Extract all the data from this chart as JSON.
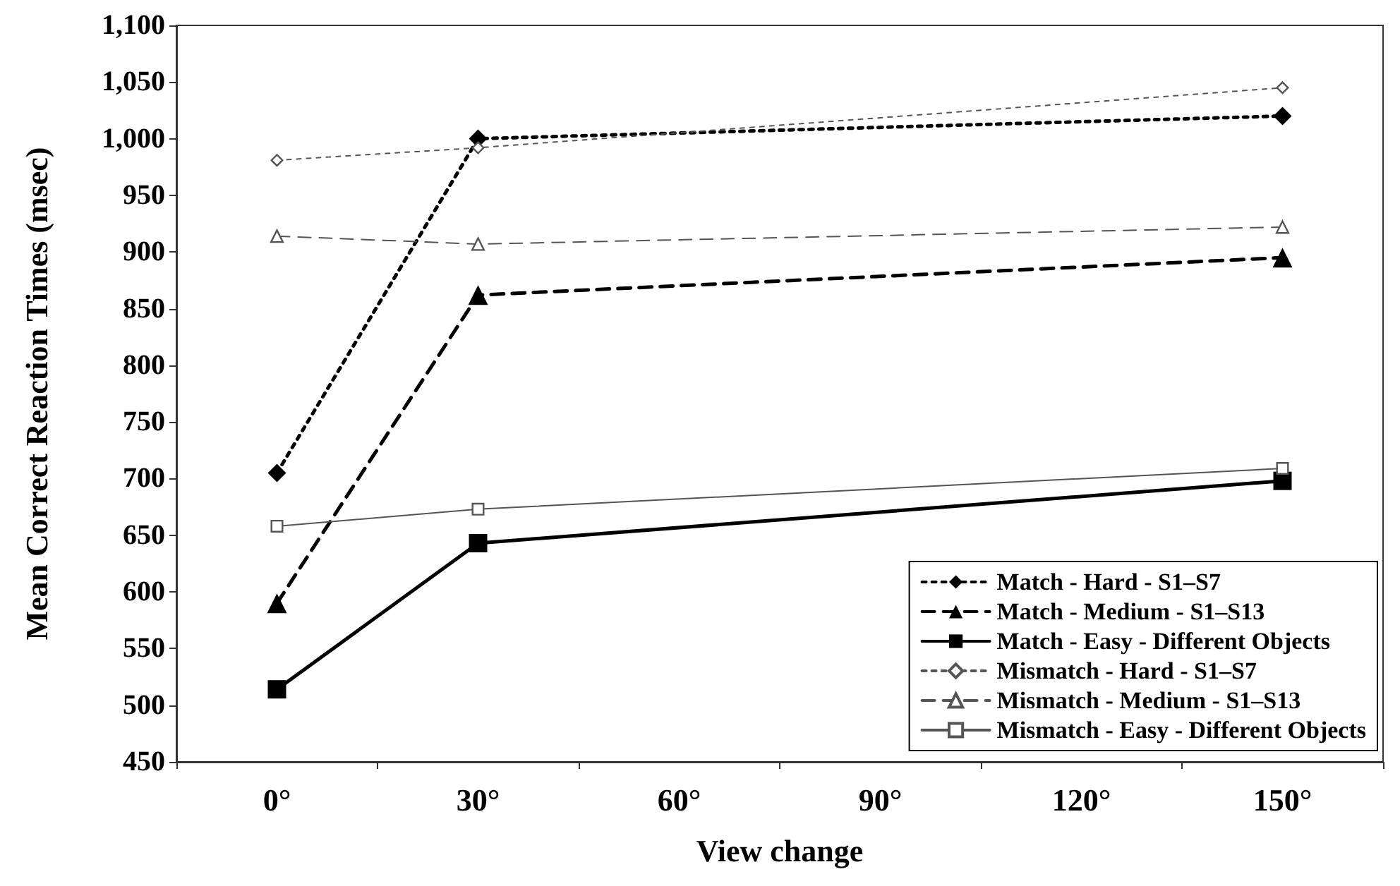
{
  "chart_data": {
    "type": "line",
    "xlabel": "View change",
    "ylabel": "Mean Correct Reaction Times (msec)",
    "categories": [
      "0°",
      "30°",
      "60°",
      "90°",
      "120°",
      "150°"
    ],
    "ylim": [
      450,
      1100
    ],
    "yticks": [
      450,
      500,
      550,
      600,
      650,
      700,
      750,
      800,
      850,
      900,
      950,
      {
        "value": 1000,
        "label": "1,000"
      },
      {
        "value": 1050,
        "label": "1,050"
      },
      {
        "value": 1100,
        "label": "1,100"
      }
    ],
    "grid": false,
    "legend": "bottom right",
    "series": [
      {
        "name": "Match - Hard - S1–S7",
        "color": "#000000",
        "marker": "diamond",
        "line_style": "dotted",
        "values": [
          705,
          1000,
          null,
          null,
          null,
          1020
        ]
      },
      {
        "name": "Match - Medium - S1–S13",
        "color": "#000000",
        "marker": "triangle",
        "line_style": "dashed",
        "values": [
          590,
          862,
          null,
          null,
          null,
          895
        ]
      },
      {
        "name": "Match - Easy - Different Objects",
        "color": "#000000",
        "marker": "square",
        "line_style": "solid",
        "values": [
          514,
          643,
          null,
          null,
          null,
          698
        ]
      },
      {
        "name": "Mismatch - Hard - S1–S7",
        "color": "#555555",
        "marker": "diamond",
        "line_style": "dotted",
        "values": [
          981,
          992,
          null,
          null,
          null,
          1045
        ]
      },
      {
        "name": "Mismatch - Medium - S1–S13",
        "color": "#555555",
        "marker": "triangle",
        "line_style": "dashed",
        "values": [
          914,
          907,
          null,
          null,
          null,
          922
        ]
      },
      {
        "name": "Mismatch - Easy - Different Objects",
        "color": "#555555",
        "marker": "square",
        "line_style": "solid",
        "values": [
          658,
          673,
          null,
          null,
          null,
          709
        ]
      }
    ]
  }
}
